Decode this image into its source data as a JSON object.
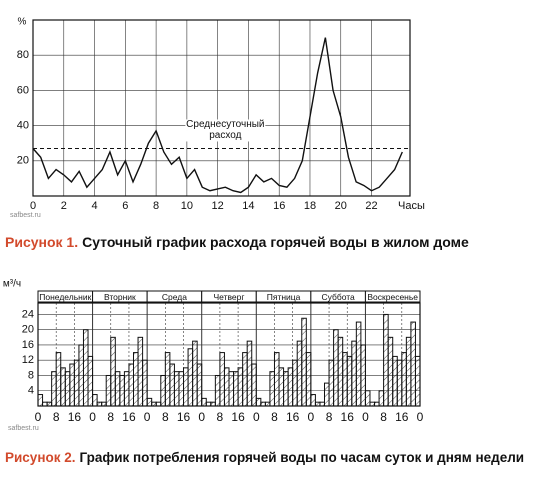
{
  "chart_data": [
    {
      "type": "line",
      "ylabel": "%",
      "xlabel": "Часы",
      "watermark": "safbest.ru",
      "figure_label": "Рисунок 1.",
      "title": "Суточный график расхода горячей воды в жилом доме",
      "x": [
        0,
        0.5,
        1,
        1.5,
        2,
        2.5,
        3,
        3.5,
        4,
        4.5,
        5,
        5.5,
        6,
        6.5,
        7,
        7.5,
        8,
        8.5,
        9,
        9.5,
        10,
        10.5,
        11,
        11.5,
        12,
        12.5,
        13,
        13.5,
        14,
        14.5,
        15,
        15.5,
        16,
        16.5,
        17,
        17.5,
        18,
        18.5,
        19,
        19.5,
        20,
        20.5,
        21,
        21.5,
        22,
        22.5,
        23,
        23.5,
        24
      ],
      "values": [
        27,
        22,
        10,
        15,
        12,
        8,
        14,
        5,
        10,
        15,
        25,
        12,
        20,
        8,
        18,
        30,
        37,
        25,
        18,
        22,
        10,
        15,
        5,
        3,
        4,
        5,
        3,
        2,
        5,
        12,
        8,
        10,
        6,
        5,
        10,
        20,
        45,
        70,
        90,
        60,
        45,
        22,
        8,
        6,
        3,
        5,
        10,
        15,
        25
      ],
      "color": "#111111",
      "xlim": [
        0,
        24.5
      ],
      "ylim": [
        0,
        100
      ],
      "xticks": [
        0,
        2,
        4,
        6,
        8,
        10,
        12,
        14,
        16,
        18,
        20,
        22
      ],
      "yticks": [
        20,
        40,
        60,
        80
      ],
      "grid": true,
      "reference_line": {
        "value": 27,
        "label_lines": [
          "Среднесуточный",
          "расход"
        ]
      }
    },
    {
      "type": "step_area",
      "ylabel": "м³/ч",
      "watermark": "safbest.ru",
      "figure_label": "Рисунок 2.",
      "title": "График потребления горячей воды по часам суток и дням недели",
      "days": [
        "Понедельник",
        "Вторник",
        "Среда",
        "Четверг",
        "Пятница",
        "Суббота",
        "Воскресенье"
      ],
      "x": [
        0,
        2,
        4,
        6,
        8,
        10,
        12,
        14,
        16,
        18,
        20,
        22,
        24,
        26,
        28,
        30,
        32,
        34,
        36,
        38,
        40,
        42,
        44,
        46,
        48,
        50,
        52,
        54,
        56,
        58,
        60,
        62,
        64,
        66,
        68,
        70,
        72,
        74,
        76,
        78,
        80,
        82,
        84,
        86,
        88,
        90,
        92,
        94,
        96,
        98,
        100,
        102,
        104,
        106,
        108,
        110,
        112,
        114,
        116,
        118,
        120,
        122,
        124,
        126,
        128,
        130,
        132,
        134,
        136,
        138,
        140,
        142,
        144,
        146,
        148,
        150,
        152,
        154,
        156,
        158,
        160,
        162,
        164,
        166
      ],
      "values": [
        3,
        1,
        1,
        9,
        14,
        10,
        9,
        11,
        12,
        16,
        20,
        13,
        3,
        1,
        1,
        8,
        18,
        9,
        8,
        9,
        11,
        14,
        18,
        12,
        2,
        1,
        1,
        8,
        14,
        11,
        9,
        9,
        10,
        15,
        17,
        11,
        2,
        1,
        1,
        8,
        14,
        10,
        9,
        9,
        10,
        14,
        17,
        11,
        2,
        1,
        1,
        9,
        14,
        10,
        9,
        10,
        12,
        17,
        23,
        14,
        3,
        1,
        1,
        6,
        12,
        20,
        18,
        14,
        13,
        17,
        22,
        16,
        4,
        1,
        1,
        4,
        24,
        18,
        13,
        12,
        14,
        18,
        22,
        13
      ],
      "color": "#111111",
      "xlim": [
        0,
        168
      ],
      "ylim": [
        0,
        27
      ],
      "xticks": [
        0,
        {
          "value": 8,
          "label": "8"
        },
        {
          "value": 16,
          "label": "16"
        },
        {
          "value": 24,
          "label": "0"
        },
        {
          "value": 32,
          "label": "8"
        },
        {
          "value": 40,
          "label": "16"
        },
        {
          "value": 48,
          "label": "0"
        },
        {
          "value": 56,
          "label": "8"
        },
        {
          "value": 64,
          "label": "16"
        },
        {
          "value": 72,
          "label": "0"
        },
        {
          "value": 80,
          "label": "8"
        },
        {
          "value": 88,
          "label": "16"
        },
        {
          "value": 96,
          "label": "0"
        },
        {
          "value": 104,
          "label": "8"
        },
        {
          "value": 112,
          "label": "16"
        },
        {
          "value": 120,
          "label": "0"
        },
        {
          "value": 128,
          "label": "8"
        },
        {
          "value": 136,
          "label": "16"
        },
        {
          "value": 144,
          "label": "0"
        },
        {
          "value": 152,
          "label": "8"
        },
        {
          "value": 160,
          "label": "16"
        },
        {
          "value": 168,
          "label": "0"
        }
      ],
      "yticks": [
        4,
        8,
        12,
        16,
        20,
        24
      ],
      "grid": true
    }
  ]
}
